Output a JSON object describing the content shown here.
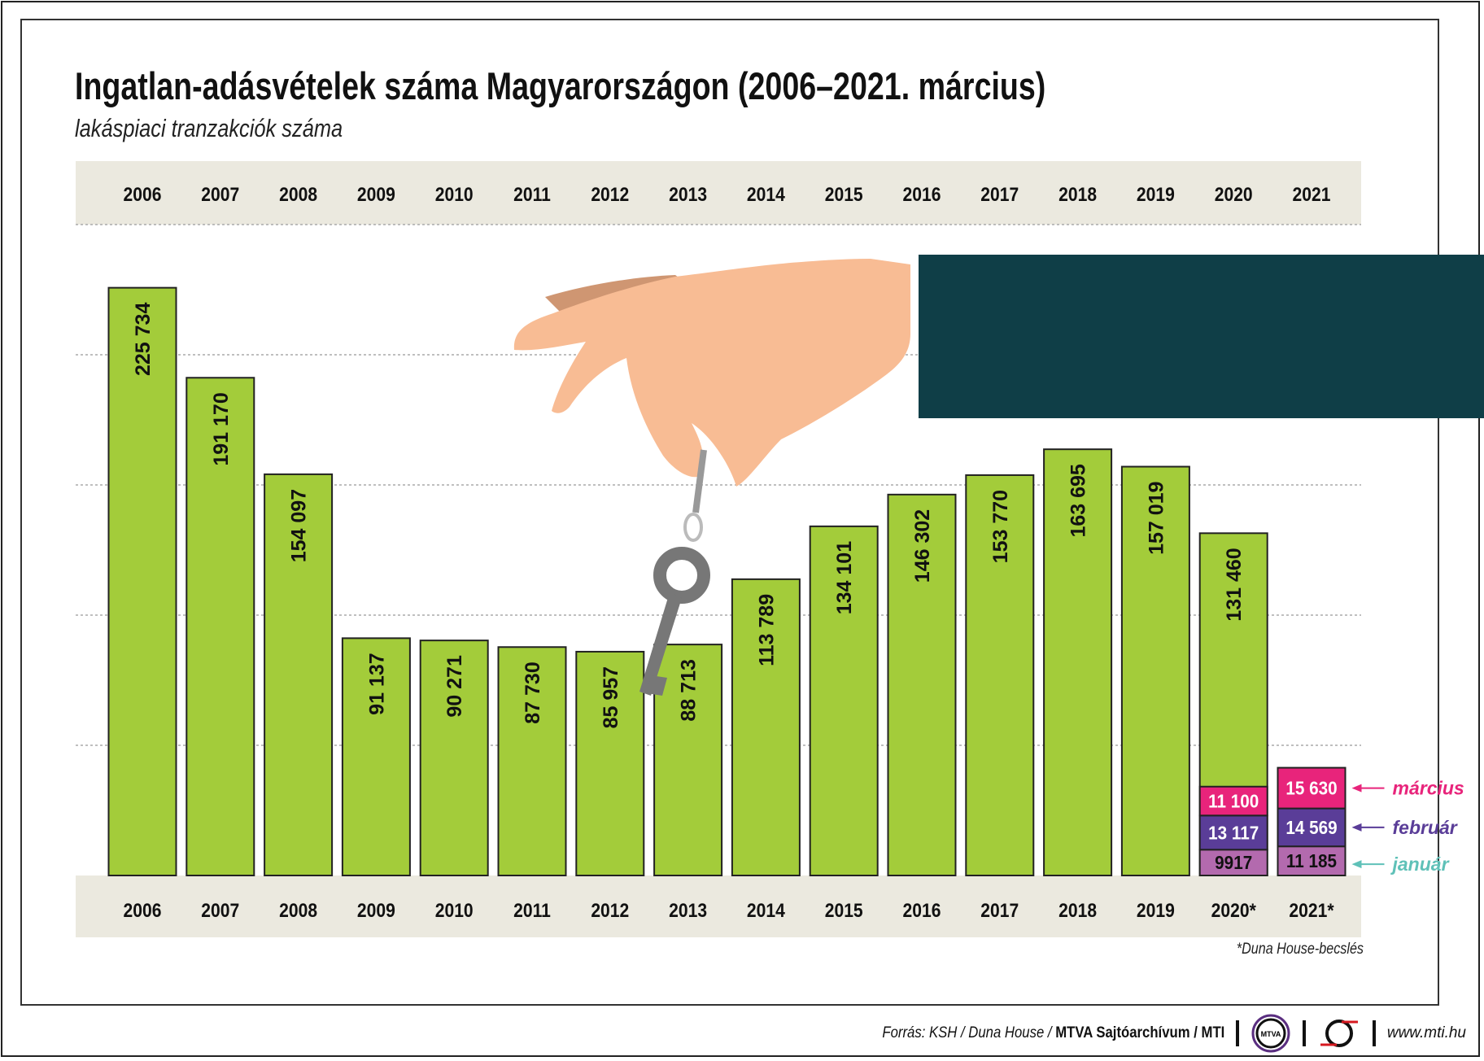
{
  "title": "Ingatlan-adásvételek száma Magyarországon (2006–2021. március)",
  "subtitle": "lakáspiaci tranzakciók száma",
  "footnote": "*Duna House-becslés",
  "footer": {
    "source_italic": "Forrás: KSH / Duna House / ",
    "source_bold": "MTVA Sajtóarchívum / MTI",
    "logo_mtva": "MTVA",
    "website": "www.mti.hu"
  },
  "colors": {
    "bar": "#a3cc3a",
    "januar": "#b36aae",
    "februar": "#5a3d98",
    "marcius": "#e8247b",
    "januar_label": "#5fc1b8",
    "band": "#ebe9df",
    "panel": "#0f3e47",
    "hand": "#f8bc94"
  },
  "chart_data": {
    "type": "bar",
    "title": "Ingatlan-adásvételek száma Magyarországon (2006–2021. március)",
    "subtitle": "lakáspiaci tranzakciók száma",
    "top_labels": [
      "2006",
      "2007",
      "2008",
      "2009",
      "2010",
      "2011",
      "2012",
      "2013",
      "2014",
      "2015",
      "2016",
      "2017",
      "2018",
      "2019",
      "2020",
      "2021"
    ],
    "categories": [
      "2006",
      "2007",
      "2008",
      "2009",
      "2010",
      "2011",
      "2012",
      "2013",
      "2014",
      "2015",
      "2016",
      "2017",
      "2018",
      "2019",
      "2020*",
      "2021*"
    ],
    "values": [
      225734,
      191170,
      154097,
      91137,
      90271,
      87730,
      85957,
      88713,
      113789,
      134101,
      146302,
      153770,
      163695,
      157019,
      131460,
      null
    ],
    "value_labels": [
      "225 734",
      "191 170",
      "154 097",
      "91 137",
      "90 271",
      "87 730",
      "85 957",
      "88 713",
      "113 789",
      "134 101",
      "146 302",
      "153 770",
      "163 695",
      "157 019",
      "131 460",
      ""
    ],
    "stacked": {
      "categories": [
        "2020*",
        "2021*"
      ],
      "series": [
        {
          "name": "január",
          "values": [
            9917,
            11185
          ],
          "labels": [
            "9917",
            "11 185"
          ]
        },
        {
          "name": "február",
          "values": [
            13117,
            14569
          ],
          "labels": [
            "13 117",
            "14 569"
          ]
        },
        {
          "name": "március",
          "values": [
            11100,
            15630
          ],
          "labels": [
            "11 100",
            "15 630"
          ]
        }
      ]
    },
    "ylim": [
      0,
      250000
    ],
    "gridlines": [
      50000,
      100000,
      150000,
      200000,
      250000
    ],
    "grid": true,
    "legend_placement": "right"
  }
}
